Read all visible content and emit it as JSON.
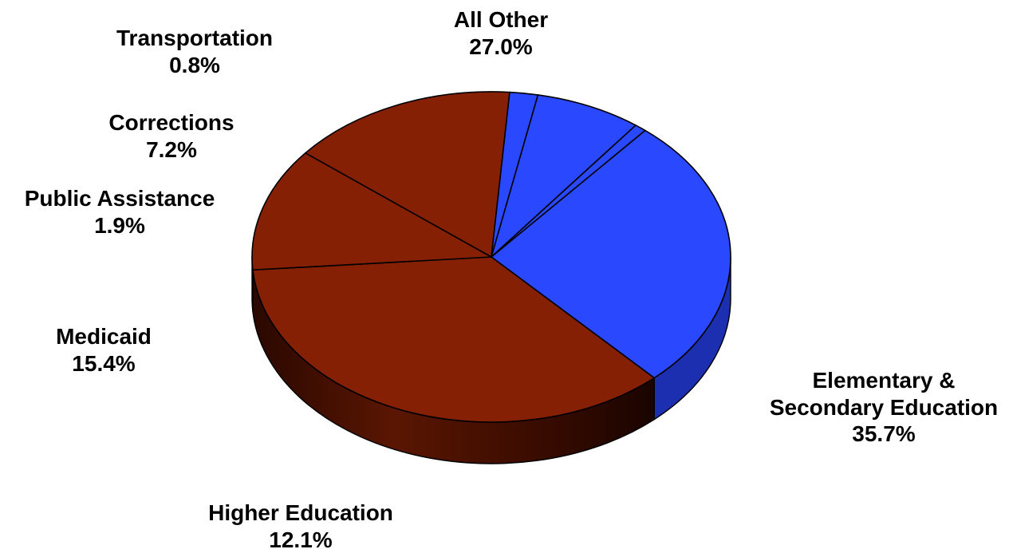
{
  "chart_data": {
    "type": "pie",
    "title": "",
    "legend": "none",
    "colors": {
      "blue": "#2a49ff",
      "blue_dark": "#1c2fb0",
      "brown": "#852005",
      "brown_dark": "#3a0c00"
    },
    "slices": [
      {
        "name": "All Other",
        "value": 27.0,
        "label": "27.0%",
        "color": "#2a49ff"
      },
      {
        "name": "Elementary & Secondary Education",
        "name_lines": [
          "Elementary &",
          "Secondary Education"
        ],
        "value": 35.7,
        "label": "35.7%",
        "color": "#852005"
      },
      {
        "name": "Higher Education",
        "value": 12.1,
        "label": "12.1%",
        "color": "#852005"
      },
      {
        "name": "Medicaid",
        "value": 15.4,
        "label": "15.4%",
        "color": "#852005"
      },
      {
        "name": "Public Assistance",
        "value": 1.9,
        "label": "1.9%",
        "color": "#2a49ff"
      },
      {
        "name": "Corrections",
        "value": 7.2,
        "label": "7.2%",
        "color": "#2a49ff"
      },
      {
        "name": "Transportation",
        "value": 0.8,
        "label": "0.8%",
        "color": "#2a49ff"
      }
    ]
  }
}
